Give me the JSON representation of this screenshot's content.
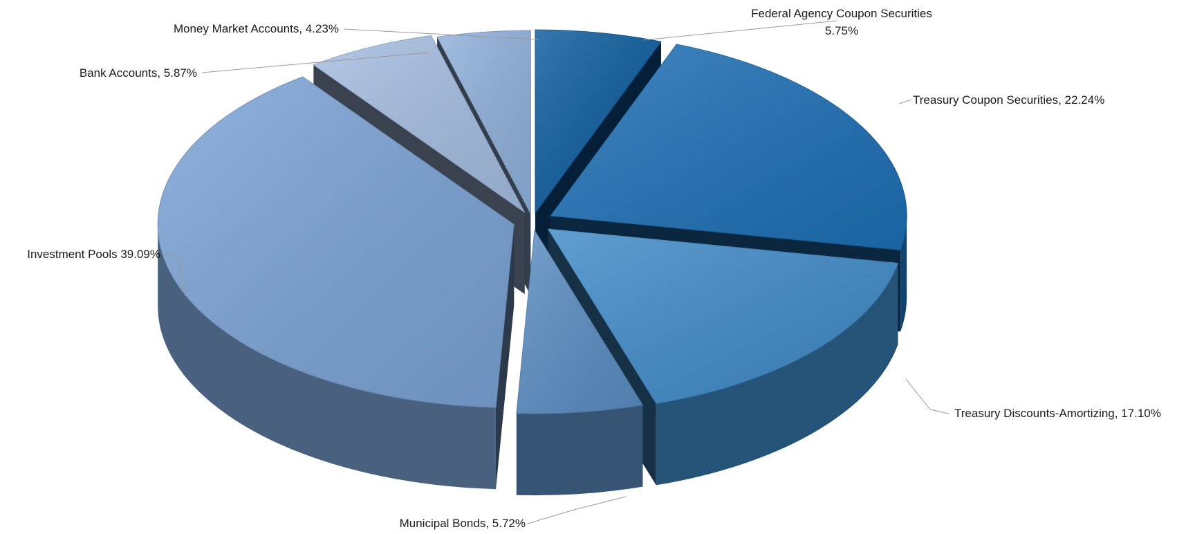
{
  "chart_data": {
    "type": "pie",
    "style": "3d-exploded",
    "slices": [
      {
        "label": "Federal Agency Coupon Securities",
        "value": 5.75,
        "label_text": [
          "Federal Agency Coupon Securities",
          "5.75%"
        ],
        "color": "#0a5a9c"
      },
      {
        "label": "Treasury Coupon Securities",
        "value": 22.24,
        "label_text": [
          "Treasury Coupon Securities, 22.24%"
        ],
        "color": "#1d6fb5"
      },
      {
        "label": "Treasury Discounts-Amortizing",
        "value": 17.1,
        "label_text": [
          "Treasury Discounts-Amortizing, 17.10%"
        ],
        "color": "#3f8ac8"
      },
      {
        "label": "Municipal Bonds",
        "value": 5.72,
        "label_text": [
          "Municipal Bonds, 5.72%"
        ],
        "color": "#5a8cc2"
      },
      {
        "label": "Investment Pools",
        "value": 39.09,
        "label_text": [
          "Investment Pools 39.09%"
        ],
        "color": "#7aa2d4"
      },
      {
        "label": "Bank Accounts",
        "value": 5.87,
        "label_text": [
          "Bank Accounts, 5.87%"
        ],
        "color": "#a3bde0"
      },
      {
        "label": "Money Market Accounts",
        "value": 4.23,
        "label_text": [
          "Money Market Accounts, 4.23%"
        ],
        "color": "#8fb0da"
      }
    ]
  }
}
